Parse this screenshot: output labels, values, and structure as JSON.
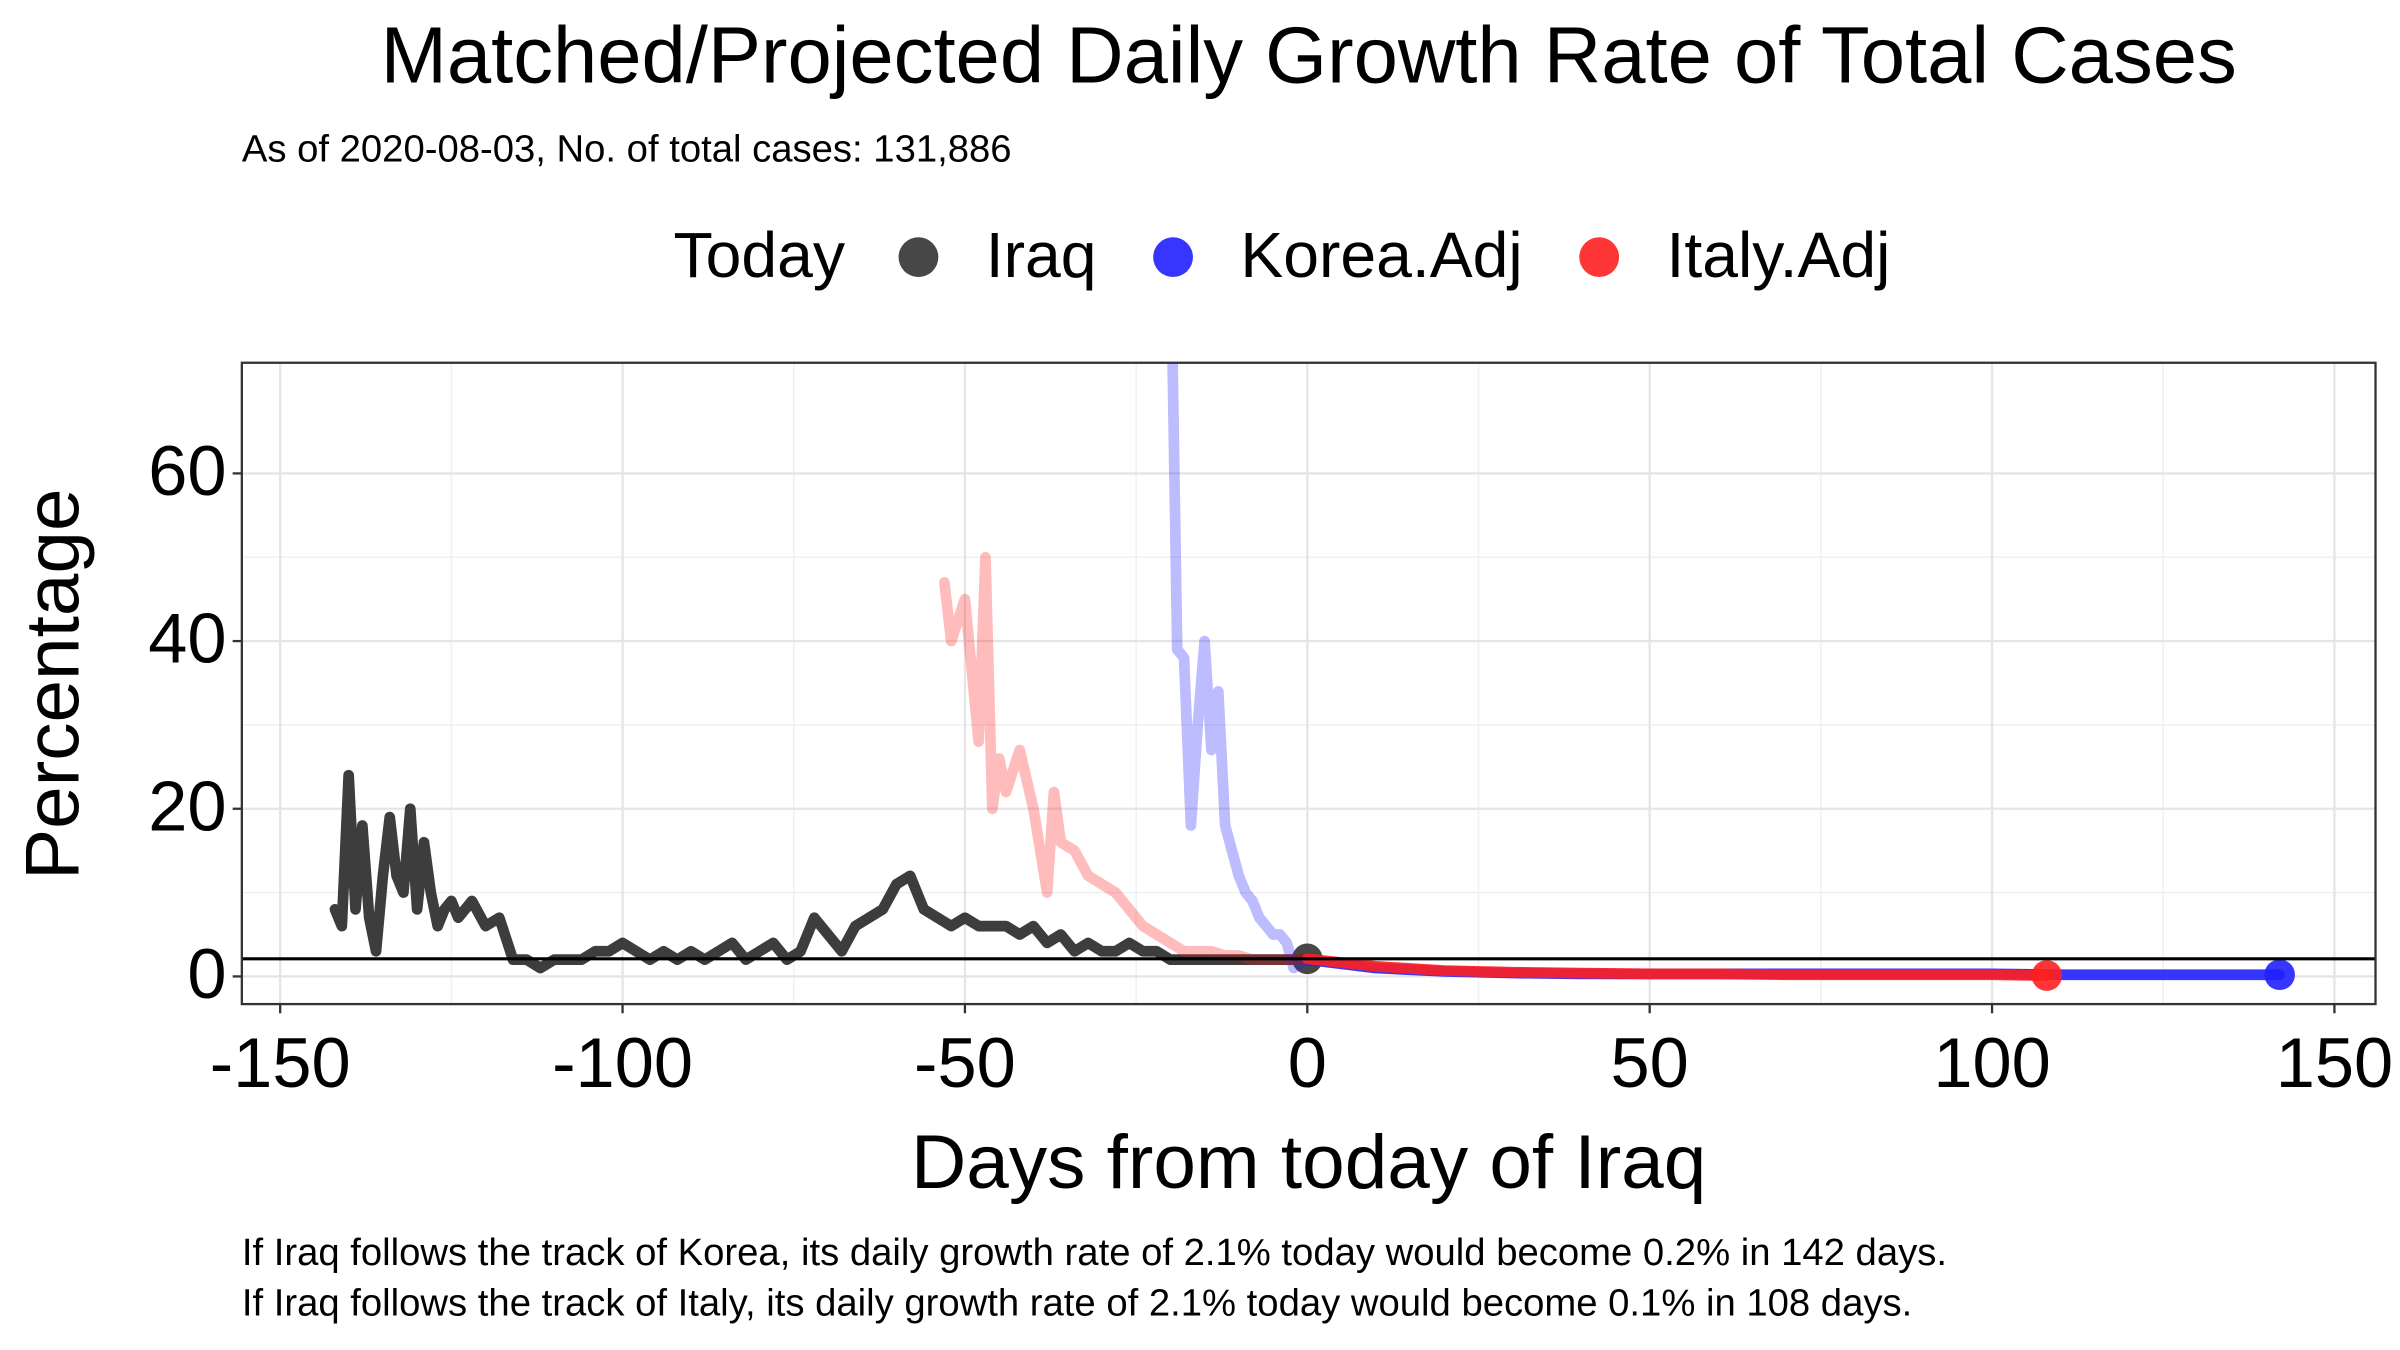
{
  "chart_data": {
    "type": "line",
    "title": "Matched/Projected Daily Growth Rate of Total Cases",
    "subtitle": "As of 2020-08-03, No. of total cases: 131,886",
    "legend_title": "Today",
    "x_label": "Days from today of Iraq",
    "y_label": "Percentage",
    "annotations": [
      "If Iraq follows the track of Korea, its daily growth rate of 2.1% today would become 0.2% in 142 days.",
      "If Iraq follows the track of Italy, its daily growth rate of 2.1% today would become 0.1% in 108 days."
    ],
    "hline": 2.1,
    "xlim": [
      -155.6,
      156
    ],
    "ylim": [
      -3.3,
      73.2
    ],
    "xticks": [
      -150,
      -100,
      -50,
      0,
      50,
      100,
      150
    ],
    "yticks": [
      0,
      20,
      40,
      60
    ],
    "grid": true,
    "series": [
      {
        "name": "Iraq",
        "color": "#333333",
        "x": [
          -142,
          -141,
          -140,
          -139,
          -138,
          -137,
          -136,
          -135,
          -134,
          -133,
          -132,
          -131,
          -130,
          -129,
          -128,
          -127,
          -126,
          -125,
          -124,
          -122,
          -120,
          -118,
          -116,
          -114,
          -112,
          -110,
          -108,
          -106,
          -104,
          -102,
          -100,
          -98,
          -96,
          -94,
          -92,
          -90,
          -88,
          -86,
          -84,
          -82,
          -80,
          -78,
          -76,
          -74,
          -72,
          -70,
          -68,
          -66,
          -64,
          -62,
          -60,
          -58,
          -56,
          -54,
          -52,
          -50,
          -48,
          -46,
          -44,
          -42,
          -40,
          -38,
          -36,
          -34,
          -32,
          -30,
          -28,
          -26,
          -24,
          -22,
          -20,
          -18,
          -16,
          -14,
          -12,
          -10,
          -8,
          -6,
          -4,
          -2,
          0
        ],
        "values": [
          8,
          6,
          24,
          8,
          18,
          7,
          3,
          12,
          19,
          12,
          10,
          20,
          8,
          16,
          10,
          6,
          8,
          9,
          7,
          9,
          6,
          7,
          2,
          2,
          1,
          2,
          2,
          2,
          3,
          3,
          4,
          3,
          2,
          3,
          2,
          3,
          2,
          3,
          4,
          2,
          3,
          4,
          2,
          3,
          7,
          5,
          3,
          6,
          7,
          8,
          11,
          12,
          8,
          7,
          6,
          7,
          6,
          6,
          6,
          5,
          6,
          4,
          5,
          3,
          4,
          3,
          3,
          4,
          3,
          3,
          2,
          2,
          2,
          2,
          2,
          2,
          2,
          2,
          2,
          2,
          2.1
        ]
      },
      {
        "name": "Korea.Adj",
        "color": "#2020ff",
        "x": [
          -20,
          -19,
          -18,
          -17,
          -16,
          -15,
          -14,
          -13,
          -12,
          -11,
          -10,
          -9,
          -8,
          -7,
          -6,
          -5,
          -4,
          -3,
          -2,
          -1,
          0,
          10,
          20,
          30,
          40,
          50,
          60,
          70,
          80,
          90,
          100,
          110,
          120,
          130,
          140,
          142
        ],
        "values": [
          90,
          39,
          38,
          18,
          30,
          40,
          27,
          34,
          18,
          15,
          12,
          10,
          9,
          7,
          6,
          5,
          5,
          4,
          1,
          1.5,
          2,
          1.0,
          0.6,
          0.4,
          0.3,
          0.3,
          0.3,
          0.3,
          0.3,
          0.3,
          0.3,
          0.2,
          0.2,
          0.2,
          0.2,
          0.2
        ]
      },
      {
        "name": "Italy.Adj",
        "color": "#ff2020",
        "x": [
          -53,
          -52,
          -50,
          -48,
          -47,
          -46,
          -45,
          -44,
          -42,
          -40,
          -38,
          -37,
          -36,
          -34,
          -32,
          -30,
          -28,
          -26,
          -24,
          -22,
          -20,
          -18,
          -16,
          -14,
          -12,
          -10,
          -8,
          -6,
          -4,
          -2,
          0,
          10,
          20,
          30,
          40,
          50,
          60,
          70,
          80,
          90,
          100,
          108
        ],
        "values": [
          47,
          40,
          45,
          28,
          50,
          20,
          26,
          22,
          27,
          20,
          10,
          22,
          16,
          15,
          12,
          11,
          10,
          8,
          6,
          5,
          4,
          3,
          3,
          3,
          2.5,
          2.5,
          2,
          2,
          2,
          2,
          2.1,
          1.2,
          0.7,
          0.5,
          0.4,
          0.3,
          0.3,
          0.2,
          0.2,
          0.2,
          0.2,
          0.1
        ]
      }
    ]
  }
}
